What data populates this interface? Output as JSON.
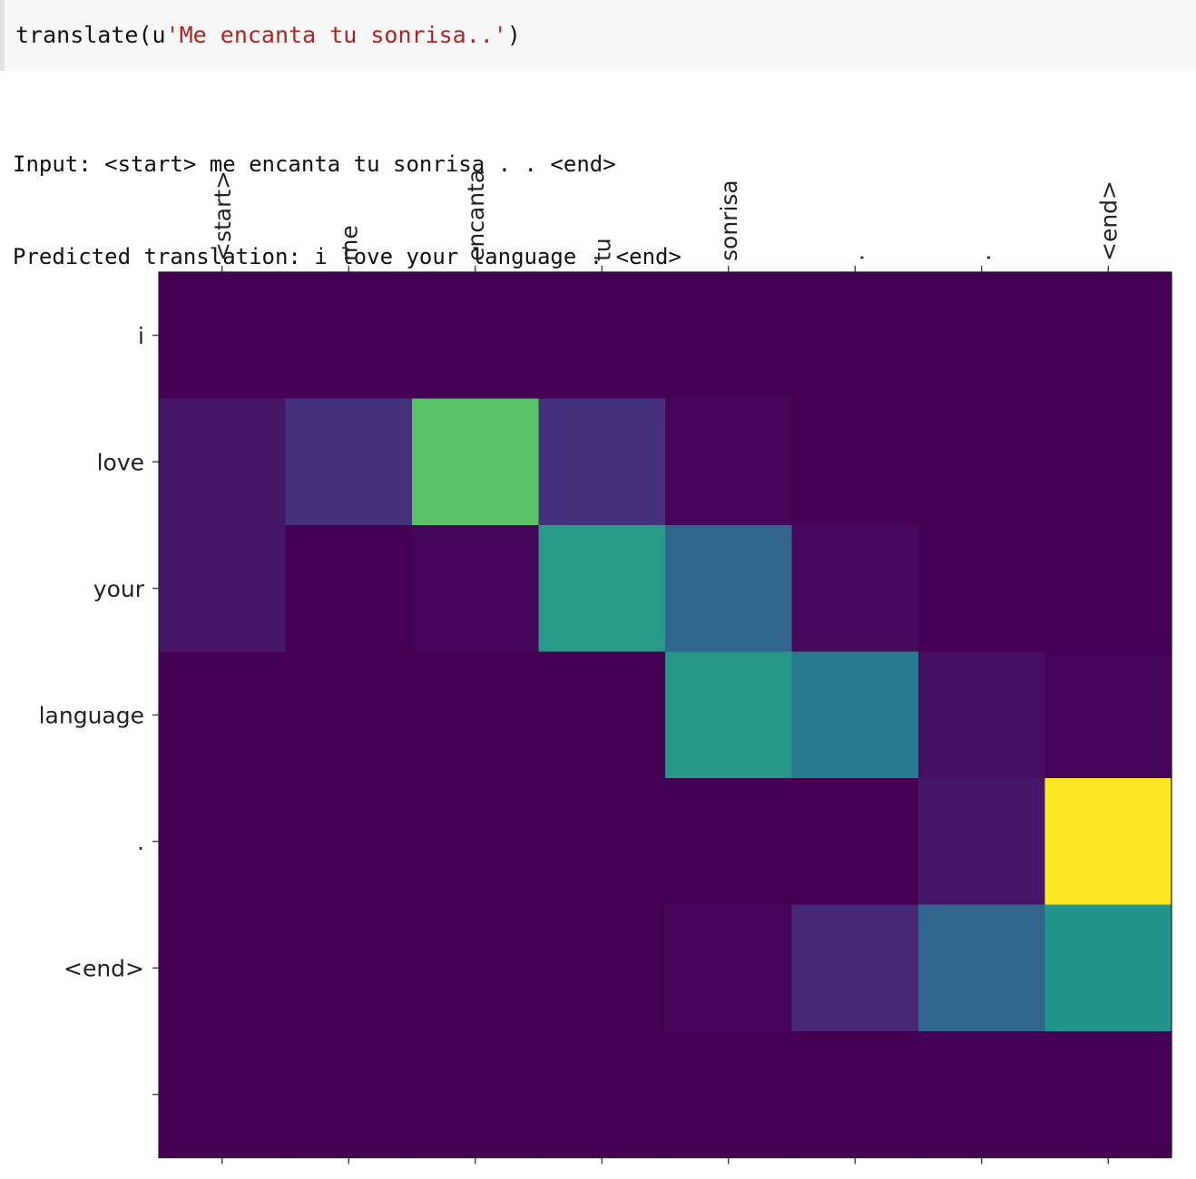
{
  "code": {
    "func": "translate(",
    "prefix": "u",
    "string": "'Me encanta tu sonrisa..'",
    "close": ")"
  },
  "output": {
    "input_line": "Input: <start> me encanta tu sonrisa . . <end>",
    "prediction_line": "Predicted translation: i love your language . <end>"
  },
  "chart_data": {
    "type": "heatmap",
    "colormap": "viridis",
    "x_labels": [
      "<start>",
      "me",
      "encanta",
      "tu",
      "sonrisa",
      ".",
      ".",
      "<end>"
    ],
    "y_labels": [
      "i",
      "love",
      "your",
      "language",
      ".",
      "<end>",
      ""
    ],
    "values": [
      [
        0.0,
        0.0,
        0.0,
        0.0,
        0.0,
        0.0,
        0.0,
        0.0
      ],
      [
        0.08,
        0.18,
        0.8,
        0.18,
        0.02,
        0.0,
        0.0,
        0.0
      ],
      [
        0.08,
        0.0,
        0.02,
        0.66,
        0.42,
        0.03,
        0.0,
        0.0
      ],
      [
        0.0,
        0.0,
        0.0,
        0.0,
        0.65,
        0.52,
        0.05,
        0.01
      ],
      [
        0.0,
        0.0,
        0.0,
        0.0,
        0.0,
        0.0,
        0.08,
        1.0
      ],
      [
        0.0,
        0.0,
        0.0,
        0.0,
        0.01,
        0.14,
        0.42,
        0.64
      ],
      [
        0.0,
        0.0,
        0.0,
        0.0,
        0.0,
        0.0,
        0.0,
        0.0
      ]
    ]
  }
}
